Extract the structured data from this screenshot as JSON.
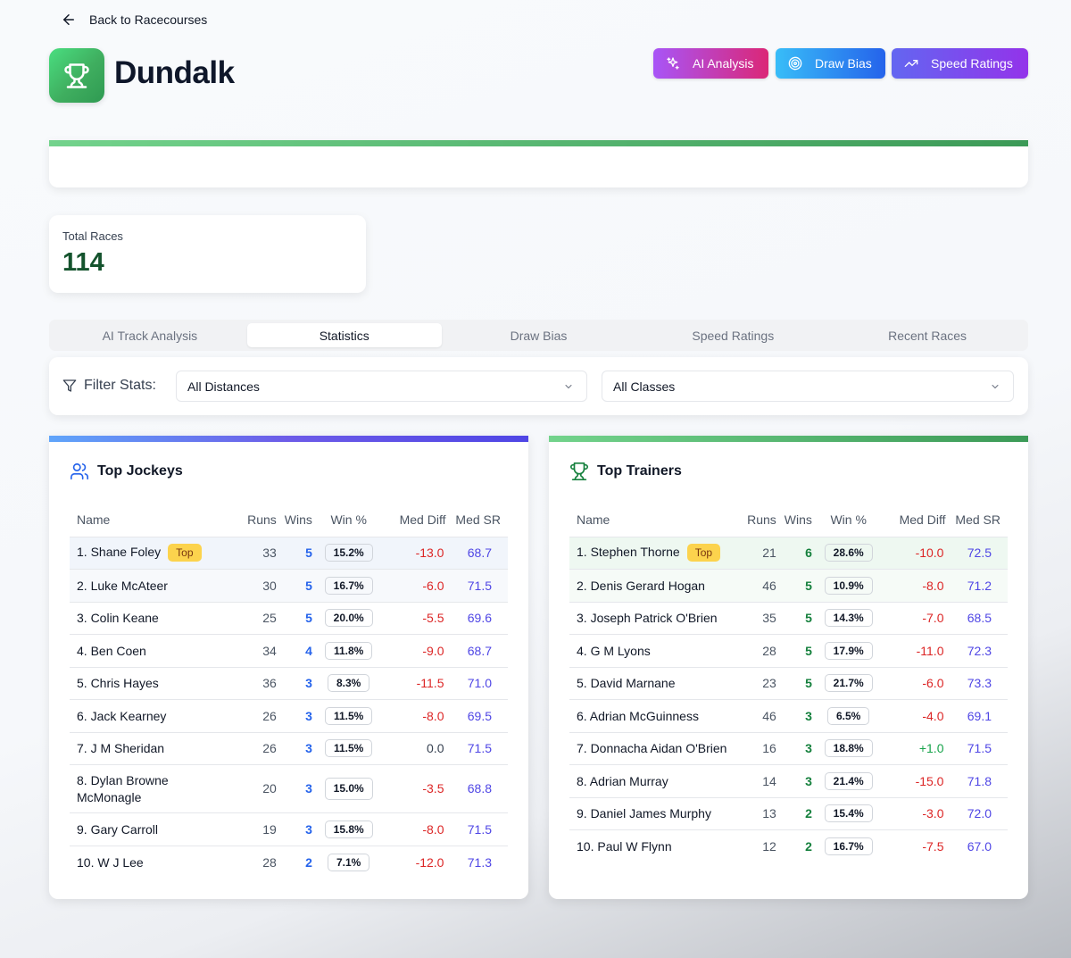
{
  "back": {
    "label": "Back to Racecourses"
  },
  "header": {
    "title": "Dundalk"
  },
  "actions": {
    "ai_analysis": "AI Analysis",
    "draw_bias": "Draw Bias",
    "speed_ratings": "Speed Ratings"
  },
  "total": {
    "label": "Total Races",
    "value": "114"
  },
  "tabs": [
    {
      "label": "AI Track Analysis"
    },
    {
      "label": "Statistics"
    },
    {
      "label": "Draw Bias"
    },
    {
      "label": "Speed Ratings"
    },
    {
      "label": "Recent Races"
    }
  ],
  "filter": {
    "label": "Filter Stats:",
    "distance": "All Distances",
    "class": "All Classes"
  },
  "columns": [
    "Name",
    "Runs",
    "Wins",
    "Win %",
    "Med Diff",
    "Med SR"
  ],
  "badge_label": "Top",
  "jockeys": {
    "title": "Top Jockeys",
    "rows": [
      {
        "name": "1. Shane Foley",
        "runs": "33",
        "wins": "5",
        "win_pct": "15.2%",
        "med_diff": "-13.0",
        "med_sr": "68.7"
      },
      {
        "name": "2. Luke McAteer",
        "runs": "30",
        "wins": "5",
        "win_pct": "16.7%",
        "med_diff": "-6.0",
        "med_sr": "71.5"
      },
      {
        "name": "3. Colin Keane",
        "runs": "25",
        "wins": "5",
        "win_pct": "20.0%",
        "med_diff": "-5.5",
        "med_sr": "69.6"
      },
      {
        "name": "4. Ben Coen",
        "runs": "34",
        "wins": "4",
        "win_pct": "11.8%",
        "med_diff": "-9.0",
        "med_sr": "68.7"
      },
      {
        "name": "5. Chris Hayes",
        "runs": "36",
        "wins": "3",
        "win_pct": "8.3%",
        "med_diff": "-11.5",
        "med_sr": "71.0"
      },
      {
        "name": "6. Jack Kearney",
        "runs": "26",
        "wins": "3",
        "win_pct": "11.5%",
        "med_diff": "-8.0",
        "med_sr": "69.5"
      },
      {
        "name": "7. J M Sheridan",
        "runs": "26",
        "wins": "3",
        "win_pct": "11.5%",
        "med_diff": "0.0",
        "med_sr": "71.5"
      },
      {
        "name": "8. Dylan Browne McMonagle",
        "runs": "20",
        "wins": "3",
        "win_pct": "15.0%",
        "med_diff": "-3.5",
        "med_sr": "68.8"
      },
      {
        "name": "9. Gary Carroll",
        "runs": "19",
        "wins": "3",
        "win_pct": "15.8%",
        "med_diff": "-8.0",
        "med_sr": "71.5"
      },
      {
        "name": "10. W J Lee",
        "runs": "28",
        "wins": "2",
        "win_pct": "7.1%",
        "med_diff": "-12.0",
        "med_sr": "71.3"
      }
    ]
  },
  "trainers": {
    "title": "Top Trainers",
    "rows": [
      {
        "name": "1. Stephen Thorne",
        "runs": "21",
        "wins": "6",
        "win_pct": "28.6%",
        "med_diff": "-10.0",
        "med_sr": "72.5"
      },
      {
        "name": "2. Denis Gerard Hogan",
        "runs": "46",
        "wins": "5",
        "win_pct": "10.9%",
        "med_diff": "-8.0",
        "med_sr": "71.2"
      },
      {
        "name": "3. Joseph Patrick O'Brien",
        "runs": "35",
        "wins": "5",
        "win_pct": "14.3%",
        "med_diff": "-7.0",
        "med_sr": "68.5"
      },
      {
        "name": "4. G M Lyons",
        "runs": "28",
        "wins": "5",
        "win_pct": "17.9%",
        "med_diff": "-11.0",
        "med_sr": "72.3"
      },
      {
        "name": "5. David Marnane",
        "runs": "23",
        "wins": "5",
        "win_pct": "21.7%",
        "med_diff": "-6.0",
        "med_sr": "73.3"
      },
      {
        "name": "6. Adrian McGuinness",
        "runs": "46",
        "wins": "3",
        "win_pct": "6.5%",
        "med_diff": "-4.0",
        "med_sr": "69.1"
      },
      {
        "name": "7. Donnacha Aidan O'Brien",
        "runs": "16",
        "wins": "3",
        "win_pct": "18.8%",
        "med_diff": "+1.0",
        "med_sr": "71.5"
      },
      {
        "name": "8. Adrian Murray",
        "runs": "14",
        "wins": "3",
        "win_pct": "21.4%",
        "med_diff": "-15.0",
        "med_sr": "71.8"
      },
      {
        "name": "9. Daniel James Murphy",
        "runs": "13",
        "wins": "2",
        "win_pct": "15.4%",
        "med_diff": "-3.0",
        "med_sr": "72.0"
      },
      {
        "name": "10. Paul W Flynn",
        "runs": "12",
        "wins": "2",
        "win_pct": "16.7%",
        "med_diff": "-7.5",
        "med_sr": "67.0"
      }
    ]
  }
}
